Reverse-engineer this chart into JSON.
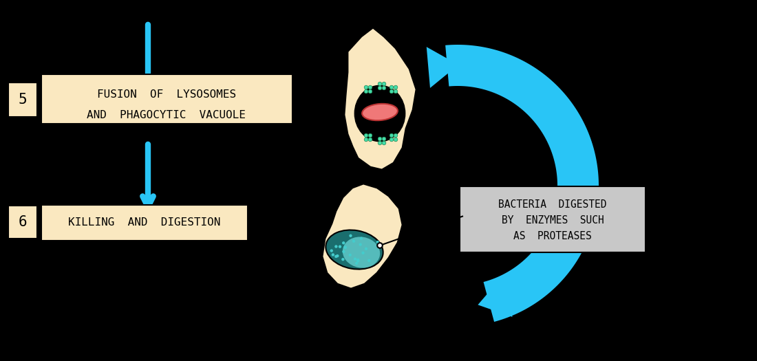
{
  "background_color": "#000000",
  "cyan_color": "#29C5F6",
  "cell_color": "#FAE8C0",
  "cell_border": "#000000",
  "label_bg": "#FAE8C0",
  "label_border": "#000000",
  "annotation_bg": "#C8C8C8",
  "annotation_border": "#000000",
  "step5_number": "5",
  "step5_text1": "FUSION  OF  LYSOSOMES",
  "step5_text2": "AND  PHAGOCYTIC  VACUOLE",
  "step6_number": "6",
  "step6_text": "KILLING  AND  DIGESTION",
  "annotation_line1": "BACTERIA  DIGESTED",
  "annotation_line2": "BY  ENZYMES  SUCH",
  "annotation_line3": "AS  PROTEASES",
  "vacuole_color": "#000000",
  "lysosome_color": "#F07878",
  "bacteria_dark": "#1a6e6e",
  "bacteria_light": "#55BBBB",
  "lyso_dot_color": "#44DDAA",
  "bact_dot_color": "#44CCCC"
}
